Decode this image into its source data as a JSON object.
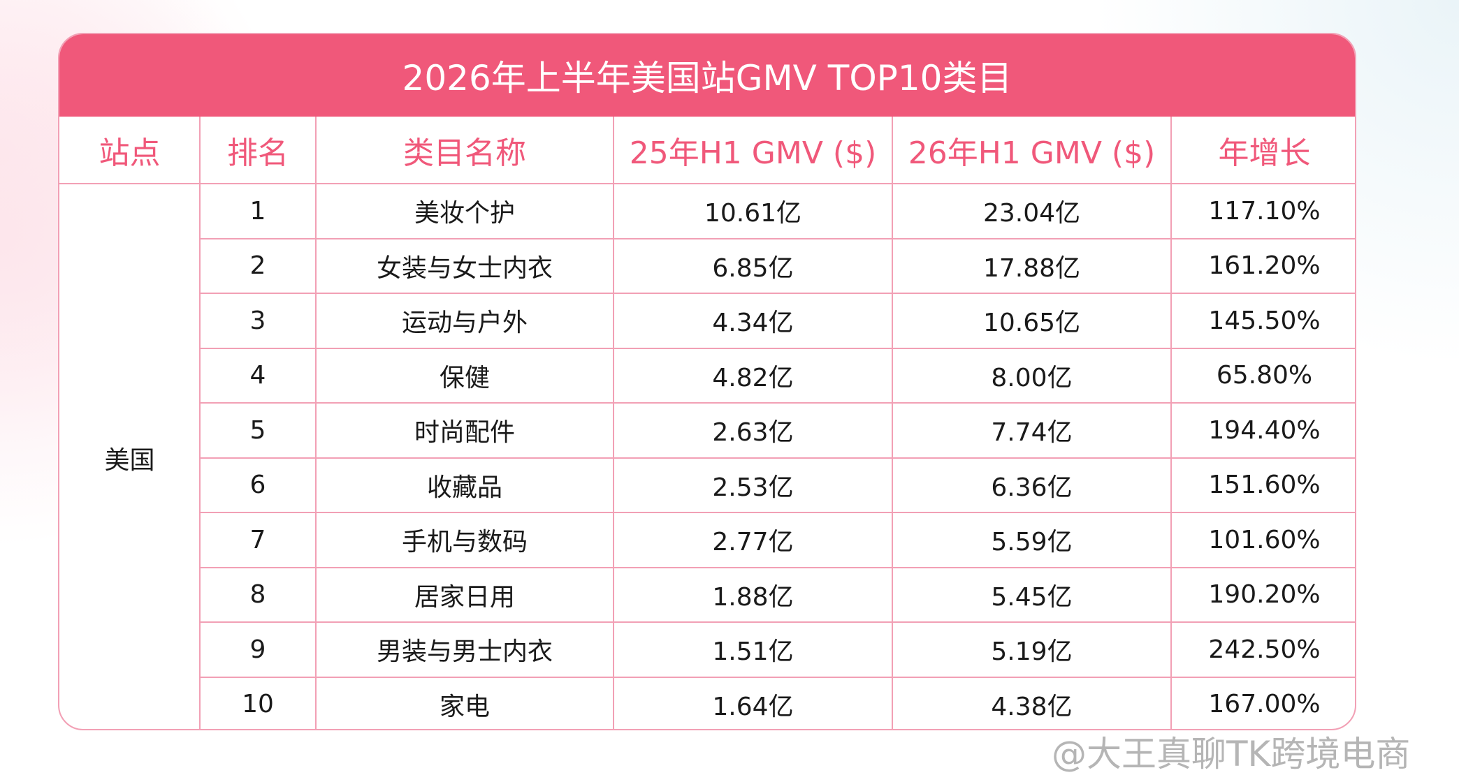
{
  "header": {
    "title": "2026年上半年美国站GMV TOP10类目"
  },
  "table": {
    "columns": [
      "站点",
      "排名",
      "类目名称",
      "25年H1 GMV ($)",
      "26年H1 GMV ($)",
      "年增长"
    ],
    "site": "美国",
    "rows": [
      [
        1,
        "美妆个护",
        "10.61亿",
        "23.04亿",
        "117.10%"
      ],
      [
        2,
        "女装与女士内衣",
        "6.85亿",
        "17.88亿",
        "161.20%"
      ],
      [
        3,
        "运动与户外",
        "4.34亿",
        "10.65亿",
        "145.50%"
      ],
      [
        4,
        "保健",
        "4.82亿",
        "8.00亿",
        "65.80%"
      ],
      [
        5,
        "时尚配件",
        "2.63亿",
        "7.74亿",
        "194.40%"
      ],
      [
        6,
        "收藏品",
        "2.53亿",
        "6.36亿",
        "151.60%"
      ],
      [
        7,
        "手机与数码",
        "2.77亿",
        "5.59亿",
        "101.60%"
      ],
      [
        8,
        "居家日用",
        "1.88亿",
        "5.45亿",
        "190.20%"
      ],
      [
        9,
        "男装与男士内衣",
        "1.51亿",
        "5.19亿",
        "242.50%"
      ],
      [
        10,
        "家电",
        "1.64亿",
        "4.38亿",
        "167.00%"
      ]
    ]
  },
  "watermark": "@大王真聊TK跨境电商"
}
